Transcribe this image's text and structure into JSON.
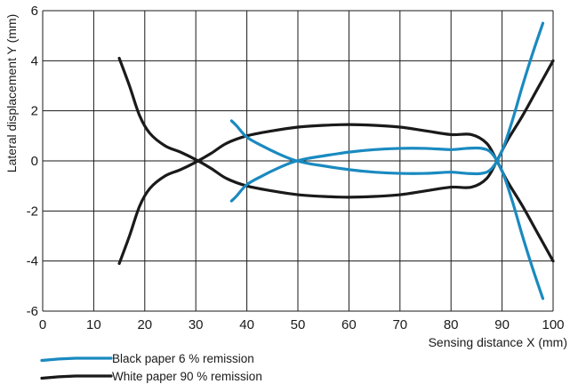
{
  "chart_data": {
    "type": "line",
    "xlabel": "Sensing distance X (mm)",
    "ylabel": "Lateral displacement Y (mm)",
    "xlim": [
      0,
      100
    ],
    "ylim": [
      -6,
      6
    ],
    "xticks": [
      0,
      10,
      20,
      30,
      40,
      50,
      60,
      70,
      80,
      90,
      100
    ],
    "yticks": [
      -6,
      -4,
      -2,
      0,
      2,
      4,
      6
    ],
    "grid": true,
    "legend_position": "bottom-left",
    "series": [
      {
        "name": "Black paper 6 % remission",
        "color": "#1a8ac0",
        "curves": [
          {
            "x": [
              37,
              38,
              40,
              43,
              46,
              49,
              52,
              55,
              60,
              65,
              70,
              75,
              80,
              83,
              86,
              88,
              90,
              92,
              94,
              96,
              98
            ],
            "y": [
              1.6,
              1.4,
              0.95,
              0.6,
              0.3,
              0.05,
              -0.1,
              -0.2,
              -0.35,
              -0.45,
              -0.5,
              -0.5,
              -0.45,
              -0.5,
              -0.5,
              -0.3,
              0.4,
              1.6,
              3.0,
              4.3,
              5.5
            ]
          },
          {
            "x": [
              37,
              38,
              40,
              43,
              46,
              49,
              52,
              55,
              60,
              65,
              70,
              75,
              80,
              83,
              86,
              88,
              90,
              92,
              94,
              96,
              98
            ],
            "y": [
              -1.6,
              -1.4,
              -0.95,
              -0.6,
              -0.3,
              -0.05,
              0.1,
              0.2,
              0.35,
              0.45,
              0.5,
              0.5,
              0.45,
              0.5,
              0.5,
              0.3,
              -0.4,
              -1.6,
              -3.0,
              -4.3,
              -5.5
            ]
          }
        ]
      },
      {
        "name": "White paper 90 % remission",
        "color": "#1a1a1a",
        "curves": [
          {
            "x": [
              15,
              17,
              19,
              21,
              24,
              27,
              30,
              33,
              36,
              40,
              45,
              50,
              55,
              60,
              65,
              70,
              75,
              80,
              84,
              87,
              89,
              91,
              94,
              97,
              100
            ],
            "y": [
              4.1,
              3.0,
              1.8,
              1.1,
              0.6,
              0.35,
              0.05,
              -0.3,
              -0.7,
              -1.0,
              -1.2,
              -1.35,
              -1.42,
              -1.45,
              -1.42,
              -1.35,
              -1.2,
              -1.05,
              -1.05,
              -0.7,
              0.0,
              0.8,
              1.8,
              2.9,
              4.0
            ]
          },
          {
            "x": [
              15,
              17,
              19,
              21,
              24,
              27,
              30,
              33,
              36,
              40,
              45,
              50,
              55,
              60,
              65,
              70,
              75,
              80,
              84,
              87,
              89,
              91,
              94,
              97,
              100
            ],
            "y": [
              -4.1,
              -3.0,
              -1.8,
              -1.1,
              -0.6,
              -0.35,
              -0.05,
              0.3,
              0.7,
              1.0,
              1.2,
              1.35,
              1.42,
              1.45,
              1.42,
              1.35,
              1.2,
              1.05,
              1.05,
              0.7,
              0.0,
              -0.8,
              -1.8,
              -2.9,
              -4.0
            ]
          }
        ]
      }
    ]
  }
}
